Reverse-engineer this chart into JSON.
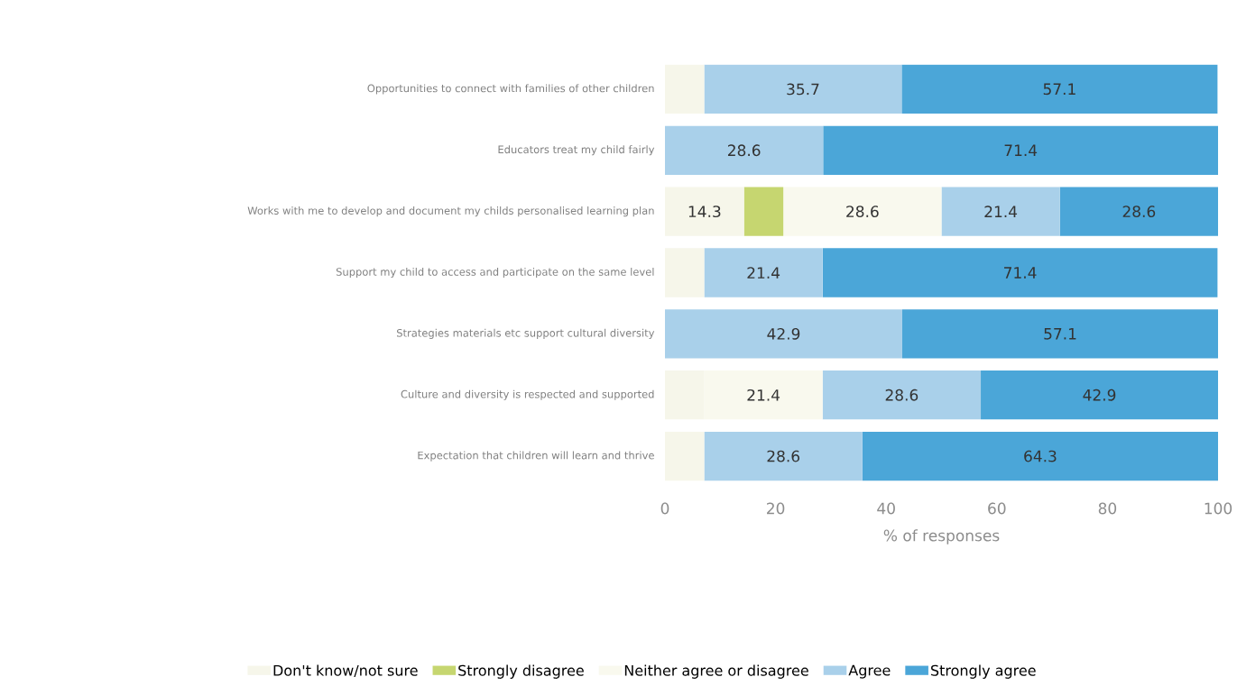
{
  "chart_data": {
    "type": "bar",
    "orientation": "horizontal",
    "stacked": true,
    "xlabel": "% of responses",
    "xlim": [
      0,
      100
    ],
    "xticks": [
      0,
      20,
      40,
      60,
      80,
      100
    ],
    "legend": "bottom",
    "grid": false,
    "categories": [
      "Opportunities to connect with families of other children",
      "Educators treat my child fairly",
      "Works with me to develop and document my childs personalised learning plan",
      "Support my child to access and participate on the same level",
      "Strategies materials  etc support cultural diversity",
      "Culture and diversity is respected and supported",
      "Expectation that children will learn and thrive"
    ],
    "series": [
      {
        "name": "Don't know/not sure",
        "color": "#f6f6ea",
        "values": [
          7.1,
          0,
          14.3,
          7.1,
          0,
          7.1,
          7.1
        ],
        "value_labels": [
          null,
          null,
          "14.3",
          null,
          null,
          null,
          null
        ]
      },
      {
        "name": "Strongly disagree",
        "color": "#c6d670",
        "values": [
          0,
          0,
          7.1,
          0,
          0,
          0,
          0
        ]
      },
      {
        "name": "Neither agree or disagree",
        "color": "#f9f9ee",
        "values": [
          0,
          0,
          28.6,
          0,
          0,
          21.4,
          0
        ],
        "value_labels": [
          null,
          null,
          "28.6",
          null,
          null,
          "21.4",
          null
        ]
      },
      {
        "name": "Agree",
        "color": "#a9d0ea",
        "values": [
          35.7,
          28.6,
          21.4,
          21.4,
          42.9,
          28.6,
          28.6
        ],
        "value_labels": [
          "35.7",
          "28.6",
          "21.4",
          "21.4",
          "42.9",
          "28.6",
          "28.6"
        ]
      },
      {
        "name": "Strongly agree",
        "color": "#4ba6d8",
        "values": [
          57.1,
          71.4,
          28.6,
          71.4,
          57.1,
          42.9,
          64.3
        ],
        "value_labels": [
          "57.1",
          "71.4",
          "28.6",
          "71.4",
          "57.1",
          "42.9",
          "64.3"
        ]
      }
    ]
  }
}
